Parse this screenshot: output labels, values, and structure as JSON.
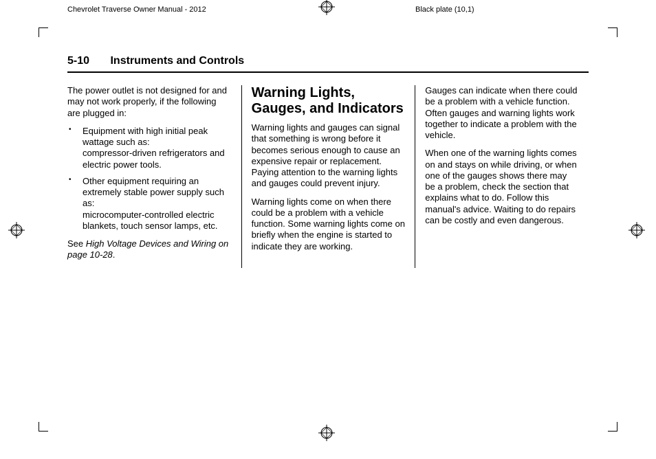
{
  "header": {
    "left": "Chevrolet Traverse Owner Manual - 2012",
    "right": "Black plate (10,1)"
  },
  "page": {
    "number": "5-10",
    "section": "Instruments and Controls"
  },
  "col1": {
    "p1": "The power outlet is not designed for and may not work properly, if the following are plugged in:",
    "b1a": "Equipment with high initial peak wattage such as:",
    "b1b": "compressor-driven refrigerators and electric power tools.",
    "b2a": "Other equipment requiring an extremely stable power supply such as:",
    "b2b": "microcomputer-controlled electric blankets, touch sensor lamps, etc.",
    "see_pre": "See ",
    "see_ref": "High Voltage Devices and Wiring on page 10-28",
    "see_post": "."
  },
  "col2": {
    "heading": "Warning Lights, Gauges, and Indicators",
    "p1": "Warning lights and gauges can signal that something is wrong before it becomes serious enough to cause an expensive repair or replacement. Paying attention to the warning lights and gauges could prevent injury.",
    "p2": "Warning lights come on when there could be a problem with a vehicle function. Some warning lights come on briefly when the engine is started to indicate they are working."
  },
  "col3": {
    "p1": "Gauges can indicate when there could be a problem with a vehicle function. Often gauges and warning lights work together to indicate a problem with the vehicle.",
    "p2": "When one of the warning lights comes on and stays on while driving, or when one of the gauges shows there may be a problem, check the section that explains what to do. Follow this manual's advice. Waiting to do repairs can be costly and even dangerous."
  },
  "regmark": {
    "stroke": "#000000",
    "fill": "#ffffff"
  }
}
